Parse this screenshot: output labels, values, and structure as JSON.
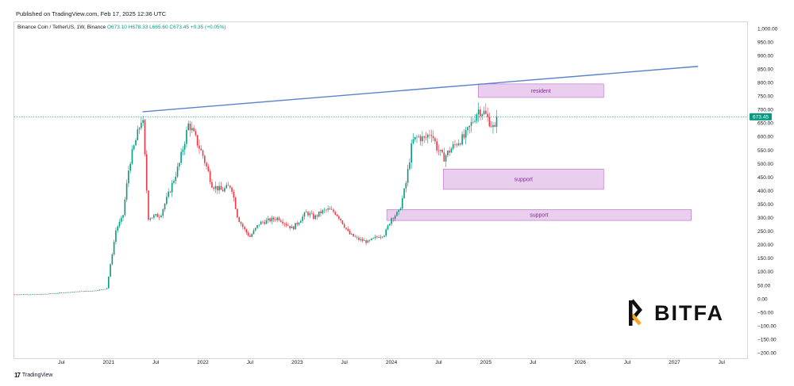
{
  "header": {
    "published": "Published on TradingView.com, Feb 17, 2025 12:36 UTC"
  },
  "symbol": {
    "name": "Binance Coin / TetherUS, 1W, Binance",
    "ohlc": "O673.10 H678.33 L665.60 C673.45 +0.35 (+0.05%)"
  },
  "footer": {
    "brand": "TradingView",
    "watermark": "BITFA"
  },
  "colors": {
    "up": "#089981",
    "down": "#f23645",
    "trendline": "#5b82c9",
    "zone_fill": "#e1bee7",
    "zone_border": "#ba68c8",
    "price_tag": "#089981"
  },
  "chart_data": {
    "type": "candlestick",
    "price_tag": "673.45",
    "y_ticks": [
      1000,
      950,
      900,
      850,
      800,
      750,
      700,
      650,
      600,
      550,
      500,
      450,
      400,
      350,
      300,
      250,
      200,
      150,
      100,
      50,
      0,
      -50,
      -100,
      -150,
      -200
    ],
    "y_tick_labels": [
      "1,000.00",
      "950.00",
      "900.00",
      "850.00",
      "800.00",
      "750.00",
      "700.00",
      "650.00",
      "600.00",
      "550.00",
      "500.00",
      "450.00",
      "400.00",
      "350.00",
      "300.00",
      "250.00",
      "200.00",
      "150.00",
      "100.00",
      "50.00",
      "0.00",
      "−50.00",
      "−100.00",
      "−150.00",
      "−200.00"
    ],
    "x_ticks": [
      {
        "t": 2020.5,
        "label": "Jul"
      },
      {
        "t": 2021.0,
        "label": "2021"
      },
      {
        "t": 2021.5,
        "label": "Jul"
      },
      {
        "t": 2022.0,
        "label": "2022"
      },
      {
        "t": 2022.5,
        "label": "Jul"
      },
      {
        "t": 2023.0,
        "label": "2023"
      },
      {
        "t": 2023.5,
        "label": "Jul"
      },
      {
        "t": 2024.0,
        "label": "2024"
      },
      {
        "t": 2024.5,
        "label": "Jul"
      },
      {
        "t": 2025.0,
        "label": "2025"
      },
      {
        "t": 2025.5,
        "label": "Jul"
      },
      {
        "t": 2026.0,
        "label": "2026"
      },
      {
        "t": 2026.5,
        "label": "Jul"
      },
      {
        "t": 2027.0,
        "label": "2027"
      },
      {
        "t": 2027.5,
        "label": "Jul"
      }
    ],
    "price_path": [
      [
        2020.0,
        16
      ],
      [
        2020.3,
        17
      ],
      [
        2020.6,
        25
      ],
      [
        2020.85,
        30
      ],
      [
        2020.98,
        38
      ],
      [
        2021.08,
        260
      ],
      [
        2021.15,
        300
      ],
      [
        2021.22,
        500
      ],
      [
        2021.3,
        600
      ],
      [
        2021.36,
        680
      ],
      [
        2021.42,
        300
      ],
      [
        2021.55,
        310
      ],
      [
        2021.65,
        400
      ],
      [
        2021.75,
        500
      ],
      [
        2021.85,
        650
      ],
      [
        2021.9,
        610
      ],
      [
        2022.0,
        530
      ],
      [
        2022.1,
        420
      ],
      [
        2022.2,
        400
      ],
      [
        2022.3,
        420
      ],
      [
        2022.37,
        300
      ],
      [
        2022.45,
        250
      ],
      [
        2022.5,
        230
      ],
      [
        2022.6,
        280
      ],
      [
        2022.7,
        290
      ],
      [
        2022.8,
        300
      ],
      [
        2022.87,
        280
      ],
      [
        2022.95,
        260
      ],
      [
        2023.05,
        300
      ],
      [
        2023.1,
        320
      ],
      [
        2023.18,
        300
      ],
      [
        2023.25,
        320
      ],
      [
        2023.32,
        330
      ],
      [
        2023.4,
        320
      ],
      [
        2023.45,
        300
      ],
      [
        2023.5,
        270
      ],
      [
        2023.55,
        240
      ],
      [
        2023.65,
        220
      ],
      [
        2023.75,
        210
      ],
      [
        2023.85,
        230
      ],
      [
        2023.93,
        240
      ],
      [
        2024.0,
        300
      ],
      [
        2024.08,
        320
      ],
      [
        2024.15,
        420
      ],
      [
        2024.22,
        580
      ],
      [
        2024.28,
        600
      ],
      [
        2024.35,
        590
      ],
      [
        2024.42,
        620
      ],
      [
        2024.48,
        560
      ],
      [
        2024.55,
        520
      ],
      [
        2024.62,
        550
      ],
      [
        2024.7,
        580
      ],
      [
        2024.78,
        600
      ],
      [
        2024.85,
        650
      ],
      [
        2024.92,
        700
      ],
      [
        2024.98,
        690
      ],
      [
        2025.05,
        650
      ],
      [
        2025.1,
        620
      ],
      [
        2025.13,
        673
      ]
    ],
    "trendline": {
      "from": [
        2021.36,
        692
      ],
      "to": [
        2027.25,
        860
      ]
    },
    "zones": [
      {
        "label": "resident",
        "t0": 2024.92,
        "t1": 2026.25,
        "low": 745,
        "high": 795
      },
      {
        "label": "support",
        "t0": 2024.55,
        "t1": 2026.25,
        "low": 405,
        "high": 480
      },
      {
        "label": "support",
        "t0": 2023.95,
        "t1": 2027.18,
        "low": 290,
        "high": 330
      }
    ]
  }
}
